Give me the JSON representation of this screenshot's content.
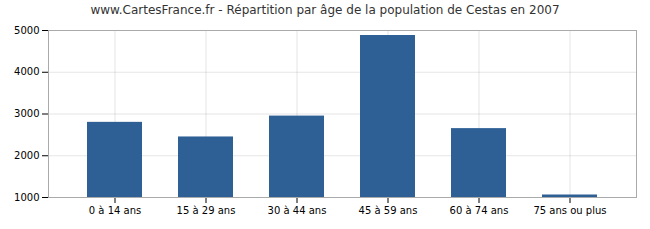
{
  "chart_data": {
    "type": "bar",
    "title": "www.CartesFrance.fr - Répartition par âge de la population de Cestas en 2007",
    "categories": [
      "0 à 14 ans",
      "15 à 29 ans",
      "30 à 44 ans",
      "45 à 59 ans",
      "60 à 74 ans",
      "75 ans ou plus"
    ],
    "values": [
      2800,
      2450,
      2950,
      4880,
      2650,
      1060
    ],
    "color": "#2e6096",
    "ylim": [
      1000,
      5000
    ],
    "yticks": [
      1000,
      2000,
      3000,
      4000,
      5000
    ],
    "grid": true
  }
}
